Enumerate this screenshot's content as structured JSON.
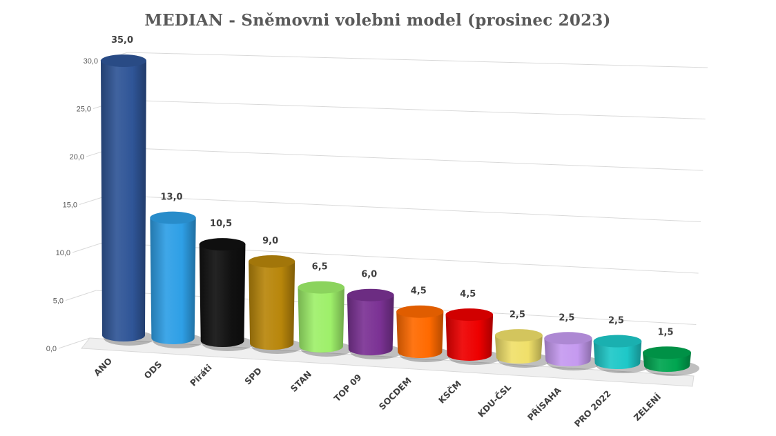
{
  "title": "MEDIAN - Sněmovni volebni model (prosinec 2023)",
  "chart_data": {
    "type": "bar",
    "subtype": "3d-cylinder",
    "title": "MEDIAN - Sněmovni volebni model (prosinec 2023)",
    "xlabel": "",
    "ylabel": "",
    "categories": [
      "ANO",
      "ODS",
      "Piráti",
      "SPD",
      "STAN",
      "TOP 09",
      "SOCDEM",
      "KSČM",
      "KDU-ČSL",
      "PŘÍSAHA",
      "PRO 2022",
      "ZELENÍ"
    ],
    "values": [
      35.0,
      13.0,
      10.5,
      9.0,
      6.5,
      6.0,
      4.5,
      4.5,
      2.5,
      2.5,
      2.5,
      1.5
    ],
    "value_labels": [
      "35,0",
      "13,0",
      "10,5",
      "9,0",
      "6,5",
      "6,0",
      "4,5",
      "4,5",
      "2,5",
      "2,5",
      "2,5",
      "1,5"
    ],
    "colors": [
      "#2f5597",
      "#2e9fe6",
      "#111111",
      "#b8860b",
      "#9ef06a",
      "#7b3294",
      "#ff6a00",
      "#ee0000",
      "#f0e06a",
      "#c59af0",
      "#1ec8c8",
      "#00a550"
    ],
    "yticks": [
      "0,0",
      "5,0",
      "10,0",
      "15,0",
      "20,0",
      "25,0",
      "30,0"
    ],
    "ylim": [
      0,
      30
    ],
    "grid": true,
    "legend": "none",
    "data_labels": true
  }
}
